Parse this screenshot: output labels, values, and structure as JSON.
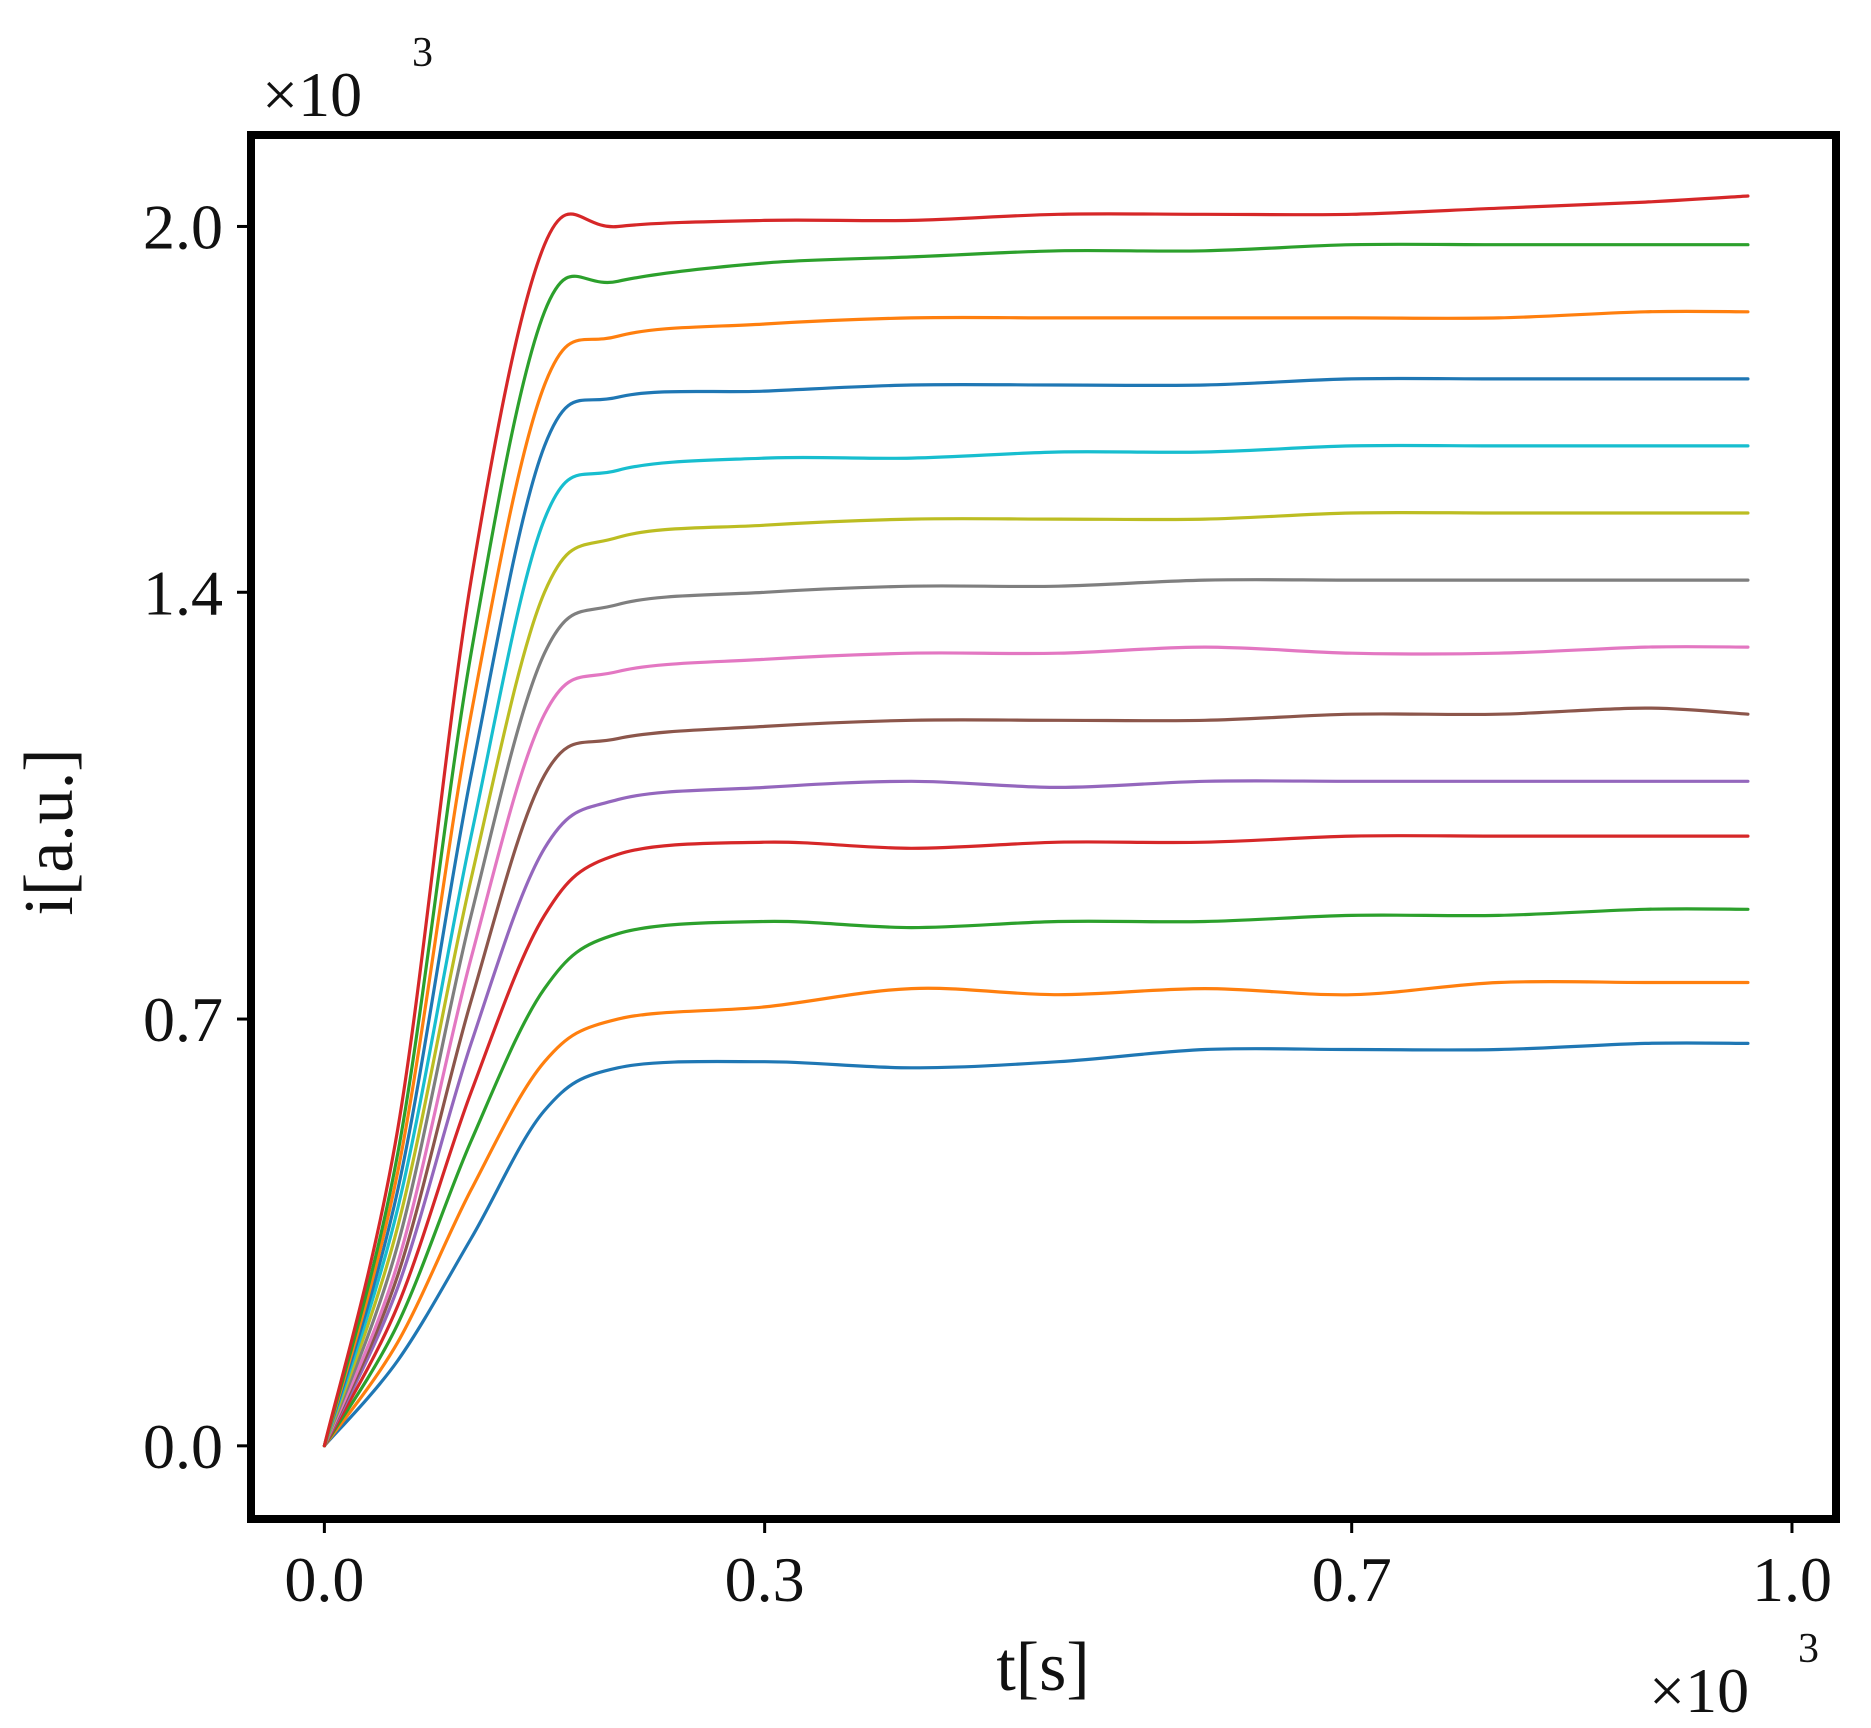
{
  "chart_data": {
    "type": "line",
    "xlabel": "t[s]",
    "ylabel": "i[a.u.]",
    "x_multiplier": {
      "base": "×10",
      "exponent": "3"
    },
    "y_multiplier": {
      "base": "×10",
      "exponent": "3"
    },
    "xlim": [
      -0.05,
      1.03
    ],
    "ylim": [
      -0.12,
      2.15
    ],
    "x_ticks": [
      {
        "value": 0.0,
        "label": "0.0"
      },
      {
        "value": 0.3,
        "label": "0.3"
      },
      {
        "value": 0.7,
        "label": "0.7"
      },
      {
        "value": 1.0,
        "label": "1.0"
      }
    ],
    "y_ticks": [
      {
        "value": 0.0,
        "label": "0.0"
      },
      {
        "value": 0.7,
        "label": "0.7"
      },
      {
        "value": 1.4,
        "label": "1.4"
      },
      {
        "value": 2.0,
        "label": "2.0"
      }
    ],
    "grid": false,
    "legend": "none",
    "series": [
      {
        "color": "#1f77b4",
        "x": [
          0,
          0.05,
          0.1,
          0.15,
          0.2,
          0.3,
          0.4,
          0.5,
          0.6,
          0.7,
          0.8,
          0.9,
          0.97
        ],
        "y": [
          0,
          0.14,
          0.34,
          0.55,
          0.62,
          0.63,
          0.62,
          0.63,
          0.65,
          0.65,
          0.65,
          0.66,
          0.66
        ]
      },
      {
        "color": "#ff7f0e",
        "x": [
          0,
          0.05,
          0.1,
          0.15,
          0.2,
          0.3,
          0.4,
          0.5,
          0.6,
          0.7,
          0.8,
          0.9,
          0.97
        ],
        "y": [
          0,
          0.17,
          0.42,
          0.63,
          0.7,
          0.72,
          0.75,
          0.74,
          0.75,
          0.74,
          0.76,
          0.76,
          0.76
        ]
      },
      {
        "color": "#2ca02c",
        "x": [
          0,
          0.05,
          0.1,
          0.15,
          0.2,
          0.3,
          0.4,
          0.5,
          0.6,
          0.7,
          0.8,
          0.9,
          0.97
        ],
        "y": [
          0,
          0.2,
          0.5,
          0.75,
          0.84,
          0.86,
          0.85,
          0.86,
          0.86,
          0.87,
          0.87,
          0.88,
          0.88
        ]
      },
      {
        "color": "#d62728",
        "x": [
          0,
          0.05,
          0.1,
          0.15,
          0.2,
          0.3,
          0.4,
          0.5,
          0.6,
          0.7,
          0.8,
          0.9,
          0.97
        ],
        "y": [
          0,
          0.23,
          0.58,
          0.87,
          0.97,
          0.99,
          0.98,
          0.99,
          0.99,
          1.0,
          1.0,
          1.0,
          1.0
        ]
      },
      {
        "color": "#9467bd",
        "x": [
          0,
          0.05,
          0.1,
          0.15,
          0.2,
          0.3,
          0.4,
          0.5,
          0.6,
          0.7,
          0.8,
          0.9,
          0.97
        ],
        "y": [
          0,
          0.26,
          0.66,
          0.98,
          1.06,
          1.08,
          1.09,
          1.08,
          1.09,
          1.09,
          1.09,
          1.09,
          1.09
        ]
      },
      {
        "color": "#8c564b",
        "x": [
          0,
          0.05,
          0.1,
          0.15,
          0.2,
          0.3,
          0.4,
          0.5,
          0.6,
          0.7,
          0.8,
          0.9,
          0.97
        ],
        "y": [
          0,
          0.28,
          0.73,
          1.1,
          1.16,
          1.18,
          1.19,
          1.19,
          1.19,
          1.2,
          1.2,
          1.21,
          1.2
        ]
      },
      {
        "color": "#e377c2",
        "x": [
          0,
          0.05,
          0.1,
          0.15,
          0.2,
          0.3,
          0.4,
          0.5,
          0.6,
          0.7,
          0.8,
          0.9,
          0.97
        ],
        "y": [
          0,
          0.3,
          0.8,
          1.2,
          1.27,
          1.29,
          1.3,
          1.3,
          1.31,
          1.3,
          1.3,
          1.31,
          1.31
        ]
      },
      {
        "color": "#7f7f7f",
        "x": [
          0,
          0.05,
          0.1,
          0.15,
          0.2,
          0.3,
          0.4,
          0.5,
          0.6,
          0.7,
          0.8,
          0.9,
          0.97
        ],
        "y": [
          0,
          0.33,
          0.87,
          1.3,
          1.38,
          1.4,
          1.41,
          1.41,
          1.42,
          1.42,
          1.42,
          1.42,
          1.42
        ]
      },
      {
        "color": "#bcbd22",
        "x": [
          0,
          0.05,
          0.1,
          0.15,
          0.2,
          0.3,
          0.4,
          0.5,
          0.6,
          0.7,
          0.8,
          0.9,
          0.97
        ],
        "y": [
          0,
          0.36,
          0.93,
          1.4,
          1.49,
          1.51,
          1.52,
          1.52,
          1.52,
          1.53,
          1.53,
          1.53,
          1.53
        ]
      },
      {
        "color": "#17becf",
        "x": [
          0,
          0.05,
          0.1,
          0.15,
          0.2,
          0.3,
          0.4,
          0.5,
          0.6,
          0.7,
          0.8,
          0.9,
          0.97
        ],
        "y": [
          0,
          0.39,
          1.0,
          1.52,
          1.6,
          1.62,
          1.62,
          1.63,
          1.63,
          1.64,
          1.64,
          1.64,
          1.64
        ]
      },
      {
        "color": "#1f77b4",
        "x": [
          0,
          0.05,
          0.1,
          0.15,
          0.2,
          0.3,
          0.4,
          0.5,
          0.6,
          0.7,
          0.8,
          0.9,
          0.97
        ],
        "y": [
          0,
          0.42,
          1.1,
          1.64,
          1.72,
          1.73,
          1.74,
          1.74,
          1.74,
          1.75,
          1.75,
          1.75,
          1.75
        ]
      },
      {
        "color": "#ff7f0e",
        "x": [
          0,
          0.05,
          0.1,
          0.15,
          0.2,
          0.3,
          0.4,
          0.5,
          0.6,
          0.7,
          0.8,
          0.9,
          0.97
        ],
        "y": [
          0,
          0.45,
          1.2,
          1.74,
          1.82,
          1.84,
          1.85,
          1.85,
          1.85,
          1.85,
          1.85,
          1.86,
          1.86
        ]
      },
      {
        "color": "#2ca02c",
        "x": [
          0,
          0.05,
          0.1,
          0.15,
          0.2,
          0.3,
          0.4,
          0.5,
          0.6,
          0.7,
          0.8,
          0.9,
          0.97
        ],
        "y": [
          0,
          0.48,
          1.3,
          1.86,
          1.91,
          1.94,
          1.95,
          1.96,
          1.96,
          1.97,
          1.97,
          1.97,
          1.97
        ]
      },
      {
        "color": "#d62728",
        "x": [
          0,
          0.05,
          0.1,
          0.15,
          0.2,
          0.3,
          0.4,
          0.5,
          0.6,
          0.7,
          0.8,
          0.9,
          0.97
        ],
        "y": [
          0,
          0.52,
          1.42,
          1.97,
          2.0,
          2.01,
          2.01,
          2.02,
          2.02,
          2.02,
          2.03,
          2.04,
          2.05
        ]
      }
    ]
  }
}
